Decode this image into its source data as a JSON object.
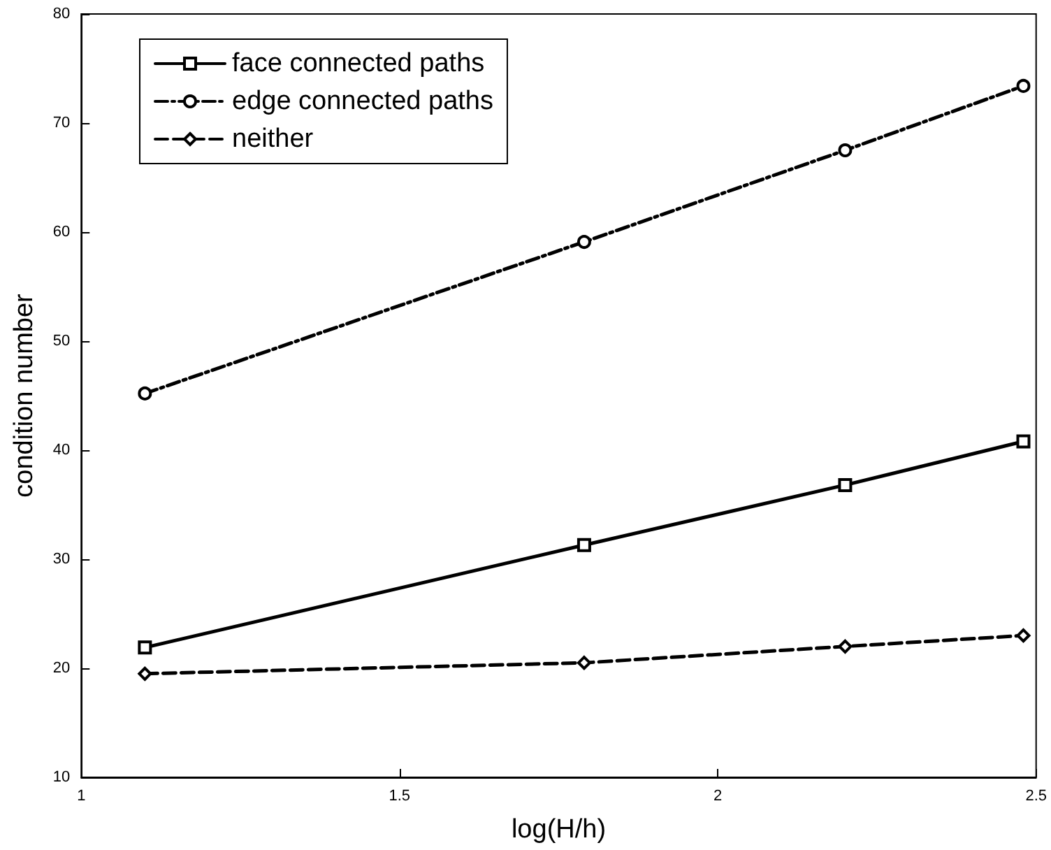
{
  "chart_data": {
    "type": "line",
    "xlabel": "log(H/h)",
    "ylabel": "condition number",
    "x": [
      1.1,
      1.79,
      2.2,
      2.48
    ],
    "series": [
      {
        "name": "face connected paths",
        "color": "#000000",
        "marker": "square",
        "line_style": "solid",
        "values": [
          21.9,
          31.3,
          36.8,
          40.8
        ]
      },
      {
        "name": "edge connected paths",
        "color": "#000000",
        "marker": "circle",
        "line_style": "dashdot",
        "values": [
          45.2,
          59.1,
          67.5,
          73.4
        ]
      },
      {
        "name": "neither",
        "color": "#000000",
        "marker": "diamond",
        "line_style": "dashed",
        "values": [
          19.5,
          20.5,
          22.0,
          23.0
        ]
      }
    ],
    "xlim": [
      1,
      2.5
    ],
    "xticks": [
      1,
      1.5,
      2,
      2.5
    ],
    "ylim": [
      10,
      80
    ],
    "yticks": [
      10,
      20,
      30,
      40,
      50,
      60,
      70,
      80
    ],
    "grid": false,
    "legend": "top left"
  }
}
